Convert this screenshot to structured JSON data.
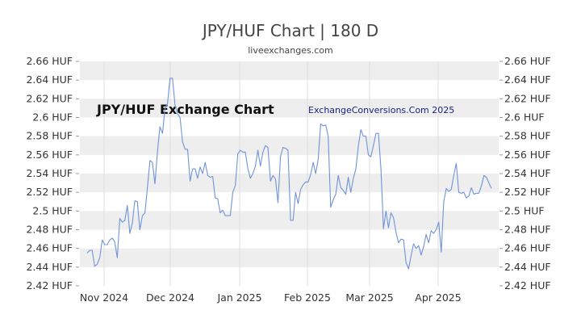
{
  "header": {
    "title": "JPY/HUF Chart | 180 D",
    "subtitle": "liveexchanges.com"
  },
  "chart_data": {
    "type": "line",
    "title": "JPY/HUF Chart | 180 D",
    "subtitle": "liveexchanges.com",
    "xlabel": "",
    "ylabel": "",
    "ylim": [
      2.42,
      2.66
    ],
    "y_ticks": [
      "2.66 HUF",
      "2.64 HUF",
      "2.62 HUF",
      "2.6 HUF",
      "2.58 HUF",
      "2.56 HUF",
      "2.54 HUF",
      "2.52 HUF",
      "2.5 HUF",
      "2.48 HUF",
      "2.46 HUF",
      "2.44 HUF",
      "2.42 HUF"
    ],
    "x_ticks": [
      "Nov 2024",
      "Dec 2024",
      "Jan 2025",
      "Feb 2025",
      "Mar 2025",
      "Apr 2025"
    ],
    "annotations": [
      "JPY/HUF Exchange Chart",
      "ExchangeConversions.Com 2025"
    ],
    "colors": {
      "line": "#6f93d8",
      "band": "#eeeeee",
      "grid": "#dddddd",
      "tick_text": "#333333"
    },
    "grid": true,
    "series": [
      {
        "values": [
          2.455,
          2.458,
          2.458,
          2.441,
          2.443,
          2.45,
          2.469,
          2.464,
          2.464,
          2.469,
          2.471,
          2.467,
          2.45,
          2.492,
          2.488,
          2.49,
          2.506,
          2.476,
          2.487,
          2.511,
          2.51,
          2.48,
          2.495,
          2.498,
          2.525,
          2.554,
          2.552,
          2.529,
          2.563,
          2.59,
          2.583,
          2.61,
          2.615,
          2.642,
          2.642,
          2.613,
          2.604,
          2.6,
          2.574,
          2.566,
          2.566,
          2.532,
          2.545,
          2.545,
          2.535,
          2.547,
          2.54,
          2.552,
          2.538,
          2.536,
          2.537,
          2.514,
          2.513,
          2.498,
          2.501,
          2.495,
          2.495,
          2.495,
          2.52,
          2.527,
          2.561,
          2.565,
          2.563,
          2.563,
          2.545,
          2.535,
          2.54,
          2.548,
          2.565,
          2.548,
          2.563,
          2.57,
          2.568,
          2.532,
          2.538,
          2.534,
          2.509,
          2.558,
          2.568,
          2.567,
          2.565,
          2.49,
          2.49,
          2.52,
          2.508,
          2.523,
          2.528,
          2.531,
          2.531,
          2.539,
          2.552,
          2.54,
          2.555,
          2.593,
          2.591,
          2.592,
          2.58,
          2.504,
          2.512,
          2.518,
          2.538,
          2.525,
          2.522,
          2.518,
          2.536,
          2.52,
          2.535,
          2.545,
          2.57,
          2.587,
          2.58,
          2.58,
          2.56,
          2.558,
          2.57,
          2.583,
          2.583,
          2.545,
          2.481,
          2.5,
          2.482,
          2.498,
          2.493,
          2.477,
          2.466,
          2.47,
          2.469,
          2.445,
          2.438,
          2.452,
          2.465,
          2.46,
          2.463,
          2.453,
          2.462,
          2.475,
          2.466,
          2.479,
          2.476,
          2.48,
          2.488,
          2.456,
          2.51,
          2.524,
          2.521,
          2.523,
          2.538,
          2.551,
          2.52,
          2.519,
          2.52,
          2.514,
          2.516,
          2.525,
          2.518,
          2.519,
          2.519,
          2.527,
          2.538,
          2.536,
          2.53,
          2.524
        ]
      }
    ]
  }
}
